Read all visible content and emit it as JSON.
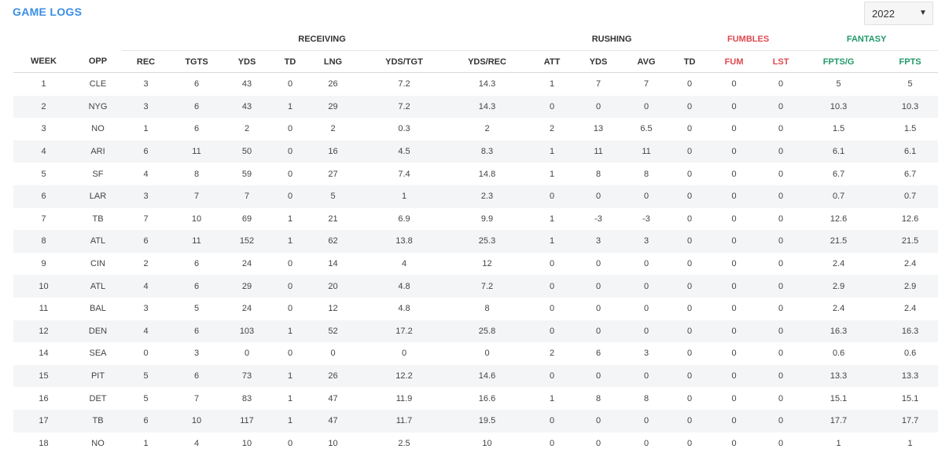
{
  "title": "GAME LOGS",
  "year_select": {
    "value": "2022",
    "caret_icon": "caret-down-icon"
  },
  "groups": {
    "receiving": "RECEIVING",
    "rushing": "RUSHING",
    "fumbles": "FUMBLES",
    "fantasy": "FANTASY"
  },
  "colors": {
    "title": "#3a8ee6",
    "fumbles": "#e0484f",
    "fantasy": "#229a6a"
  },
  "columns": [
    "WEEK",
    "OPP",
    "REC",
    "TGTS",
    "YDS",
    "TD",
    "LNG",
    "YDS/TGT",
    "YDS/REC",
    "ATT",
    "YDS",
    "AVG",
    "TD",
    "FUM",
    "LST",
    "FPTS/G",
    "FPTS"
  ],
  "rows": [
    [
      "1",
      "CLE",
      "3",
      "6",
      "43",
      "0",
      "26",
      "7.2",
      "14.3",
      "1",
      "7",
      "7",
      "0",
      "0",
      "0",
      "5",
      "5"
    ],
    [
      "2",
      "NYG",
      "3",
      "6",
      "43",
      "1",
      "29",
      "7.2",
      "14.3",
      "0",
      "0",
      "0",
      "0",
      "0",
      "0",
      "10.3",
      "10.3"
    ],
    [
      "3",
      "NO",
      "1",
      "6",
      "2",
      "0",
      "2",
      "0.3",
      "2",
      "2",
      "13",
      "6.5",
      "0",
      "0",
      "0",
      "1.5",
      "1.5"
    ],
    [
      "4",
      "ARI",
      "6",
      "11",
      "50",
      "0",
      "16",
      "4.5",
      "8.3",
      "1",
      "11",
      "11",
      "0",
      "0",
      "0",
      "6.1",
      "6.1"
    ],
    [
      "5",
      "SF",
      "4",
      "8",
      "59",
      "0",
      "27",
      "7.4",
      "14.8",
      "1",
      "8",
      "8",
      "0",
      "0",
      "0",
      "6.7",
      "6.7"
    ],
    [
      "6",
      "LAR",
      "3",
      "7",
      "7",
      "0",
      "5",
      "1",
      "2.3",
      "0",
      "0",
      "0",
      "0",
      "0",
      "0",
      "0.7",
      "0.7"
    ],
    [
      "7",
      "TB",
      "7",
      "10",
      "69",
      "1",
      "21",
      "6.9",
      "9.9",
      "1",
      "-3",
      "-3",
      "0",
      "0",
      "0",
      "12.6",
      "12.6"
    ],
    [
      "8",
      "ATL",
      "6",
      "11",
      "152",
      "1",
      "62",
      "13.8",
      "25.3",
      "1",
      "3",
      "3",
      "0",
      "0",
      "0",
      "21.5",
      "21.5"
    ],
    [
      "9",
      "CIN",
      "2",
      "6",
      "24",
      "0",
      "14",
      "4",
      "12",
      "0",
      "0",
      "0",
      "0",
      "0",
      "0",
      "2.4",
      "2.4"
    ],
    [
      "10",
      "ATL",
      "4",
      "6",
      "29",
      "0",
      "20",
      "4.8",
      "7.2",
      "0",
      "0",
      "0",
      "0",
      "0",
      "0",
      "2.9",
      "2.9"
    ],
    [
      "11",
      "BAL",
      "3",
      "5",
      "24",
      "0",
      "12",
      "4.8",
      "8",
      "0",
      "0",
      "0",
      "0",
      "0",
      "0",
      "2.4",
      "2.4"
    ],
    [
      "12",
      "DEN",
      "4",
      "6",
      "103",
      "1",
      "52",
      "17.2",
      "25.8",
      "0",
      "0",
      "0",
      "0",
      "0",
      "0",
      "16.3",
      "16.3"
    ],
    [
      "14",
      "SEA",
      "0",
      "3",
      "0",
      "0",
      "0",
      "0",
      "0",
      "2",
      "6",
      "3",
      "0",
      "0",
      "0",
      "0.6",
      "0.6"
    ],
    [
      "15",
      "PIT",
      "5",
      "6",
      "73",
      "1",
      "26",
      "12.2",
      "14.6",
      "0",
      "0",
      "0",
      "0",
      "0",
      "0",
      "13.3",
      "13.3"
    ],
    [
      "16",
      "DET",
      "5",
      "7",
      "83",
      "1",
      "47",
      "11.9",
      "16.6",
      "1",
      "8",
      "8",
      "0",
      "0",
      "0",
      "15.1",
      "15.1"
    ],
    [
      "17",
      "TB",
      "6",
      "10",
      "117",
      "1",
      "47",
      "11.7",
      "19.5",
      "0",
      "0",
      "0",
      "0",
      "0",
      "0",
      "17.7",
      "17.7"
    ],
    [
      "18",
      "NO",
      "1",
      "4",
      "10",
      "0",
      "10",
      "2.5",
      "10",
      "0",
      "0",
      "0",
      "0",
      "0",
      "0",
      "1",
      "1"
    ]
  ]
}
